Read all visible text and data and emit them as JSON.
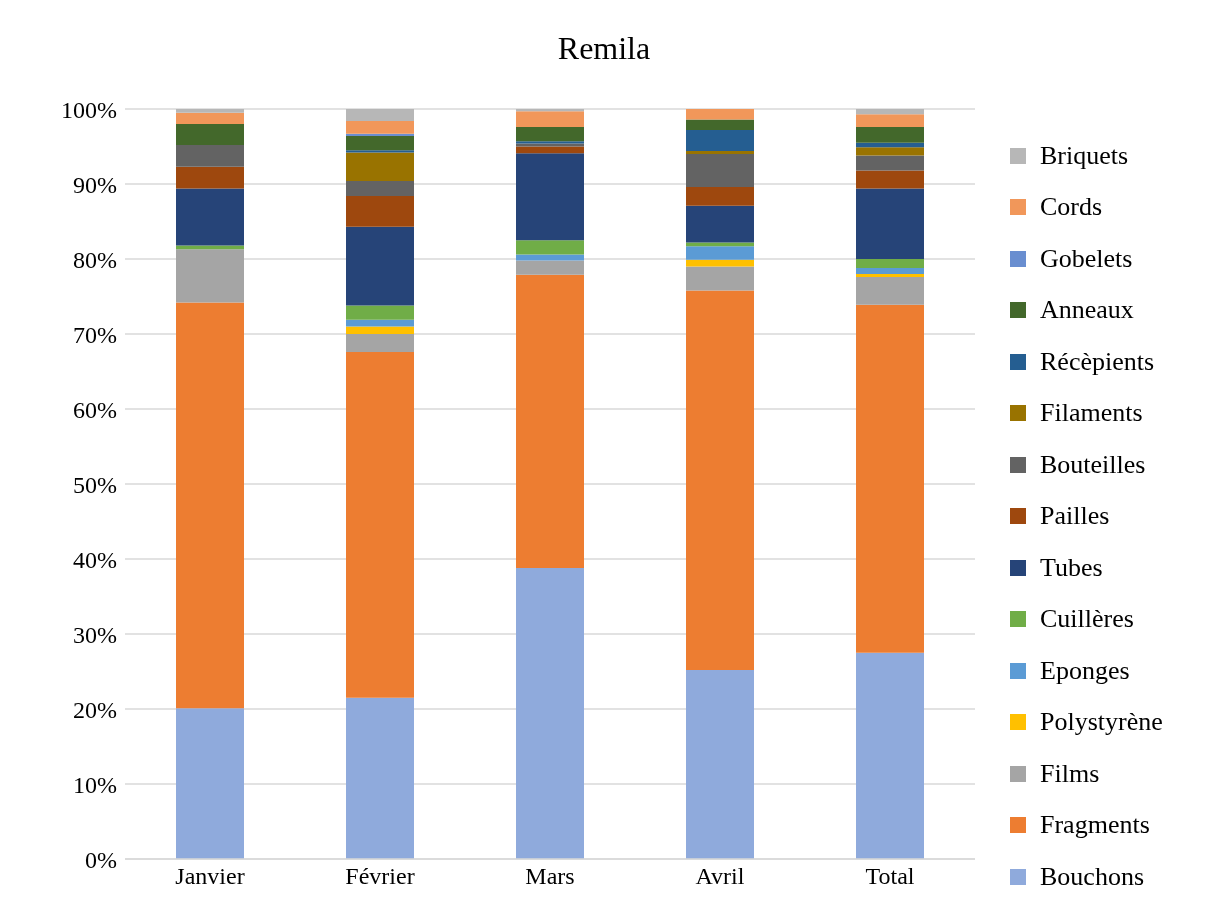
{
  "chart_data": {
    "type": "bar",
    "title": "Remila",
    "stacked": true,
    "categories": [
      "Janvier",
      "Février",
      "Mars",
      "Avril",
      "Total"
    ],
    "ylim": [
      0,
      100
    ],
    "yticks": [
      {
        "value": 0,
        "label": "0%"
      },
      {
        "value": 10,
        "label": "10%"
      },
      {
        "value": 20,
        "label": "20%"
      },
      {
        "value": 30,
        "label": "30%"
      },
      {
        "value": 40,
        "label": "40%"
      },
      {
        "value": 50,
        "label": "50%"
      },
      {
        "value": 60,
        "label": "60%"
      },
      {
        "value": 70,
        "label": "70%"
      },
      {
        "value": 80,
        "label": "80%"
      },
      {
        "value": 90,
        "label": "90%"
      },
      {
        "value": 100,
        "label": "100%"
      }
    ],
    "grid": "y",
    "legend": "right",
    "series": [
      {
        "name": "Bouchons",
        "color": "#8faadc",
        "values": [
          20.1,
          21.5,
          38.8,
          25.2,
          27.5
        ]
      },
      {
        "name": "Fragments",
        "color": "#ed7d31",
        "values": [
          54.1,
          46.1,
          39.1,
          50.6,
          46.4
        ]
      },
      {
        "name": "Films",
        "color": "#a5a5a5",
        "values": [
          7.1,
          2.4,
          1.9,
          3.2,
          3.7
        ]
      },
      {
        "name": "Polystyrène",
        "color": "#ffc000",
        "values": [
          0,
          1.0,
          0,
          0.9,
          0.4
        ]
      },
      {
        "name": "Eponges",
        "color": "#5b9bd5",
        "values": [
          0,
          0.9,
          0.8,
          1.8,
          0.8
        ]
      },
      {
        "name": "Cuillères",
        "color": "#70ad47",
        "values": [
          0.5,
          1.9,
          1.9,
          0.5,
          1.2
        ]
      },
      {
        "name": "Tubes",
        "color": "#264478",
        "values": [
          7.6,
          10.5,
          11.6,
          4.9,
          9.4
        ]
      },
      {
        "name": "Pailles",
        "color": "#9e480e",
        "values": [
          2.9,
          4.1,
          0.9,
          2.5,
          2.4
        ]
      },
      {
        "name": "Bouteilles",
        "color": "#636363",
        "values": [
          2.9,
          2.0,
          0.4,
          4.4,
          2.0
        ]
      },
      {
        "name": "Filaments",
        "color": "#997300",
        "values": [
          0,
          3.8,
          0,
          0.4,
          1.1
        ]
      },
      {
        "name": "Récèpients",
        "color": "#255e91",
        "values": [
          0,
          0.3,
          0.3,
          2.8,
          0.6
        ]
      },
      {
        "name": "Anneaux",
        "color": "#43682b",
        "values": [
          2.8,
          1.9,
          1.9,
          1.4,
          2.1
        ]
      },
      {
        "name": "Gobelets",
        "color": "#698ed0",
        "values": [
          0,
          0.3,
          0,
          0,
          0
        ]
      },
      {
        "name": "Cords",
        "color": "#f1975a",
        "values": [
          1.5,
          1.7,
          2.1,
          1.4,
          1.7
        ]
      },
      {
        "name": "Briquets",
        "color": "#b7b7b7",
        "values": [
          0.5,
          1.6,
          0.3,
          0,
          0.7
        ]
      }
    ]
  }
}
